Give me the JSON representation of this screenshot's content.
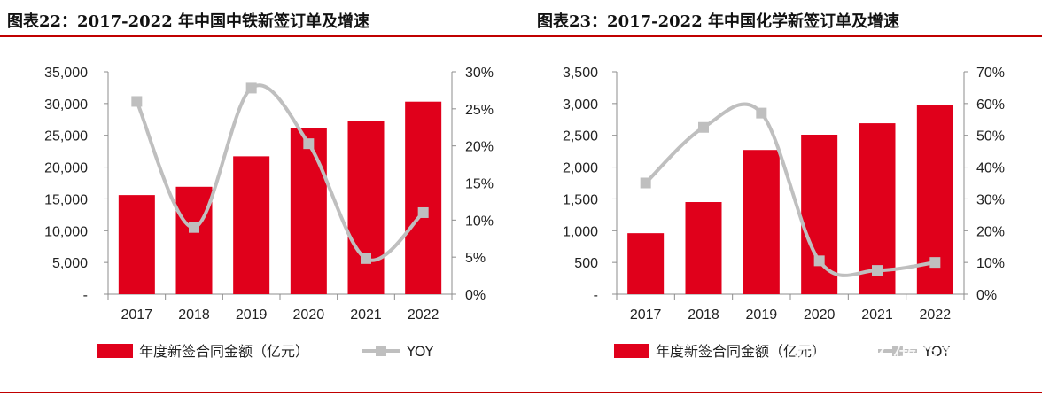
{
  "page": {
    "titles": {
      "left": "图表22：2017-2022 年中国中铁新签订单及增速",
      "right": "图表23：2017-2022 年中国化学新签订单及增速"
    },
    "watermark": "知乎 @不做韭菜"
  },
  "colors": {
    "bar": "#e0001b",
    "line": "#bfbfbf",
    "rule": "#c00000"
  },
  "chart_data": [
    {
      "type": "bar",
      "title": "图表22：2017-2022 年中国中铁新签订单及增速",
      "categories": [
        "2017",
        "2018",
        "2019",
        "2020",
        "2021",
        "2022"
      ],
      "series": [
        {
          "name": "年度新签合同金额（亿元）",
          "type": "bar",
          "axis": "left",
          "values": [
            15600,
            16900,
            21700,
            26100,
            27300,
            30300
          ]
        },
        {
          "name": "YOY",
          "type": "line",
          "axis": "right",
          "values": [
            0.26,
            0.09,
            0.278,
            0.203,
            0.048,
            0.11
          ]
        }
      ],
      "y_left": {
        "min": 0,
        "max": 35000,
        "step": 5000,
        "ticks": [
          "-",
          "5,000",
          "10,000",
          "15,000",
          "20,000",
          "25,000",
          "30,000",
          "35,000"
        ]
      },
      "y_right": {
        "min": 0,
        "max": 0.3,
        "step": 0.05,
        "ticks": [
          "0%",
          "5%",
          "10%",
          "15%",
          "20%",
          "25%",
          "30%"
        ]
      },
      "legend": {
        "bar_label": "年度新签合同金额（亿元）",
        "line_label": "YOY",
        "placement": "bottom"
      },
      "grid": false
    },
    {
      "type": "bar",
      "title": "图表23：2017-2022 年中国化学新签订单及增速",
      "categories": [
        "2017",
        "2018",
        "2019",
        "2020",
        "2021",
        "2022"
      ],
      "series": [
        {
          "name": "年度新签合同金额（亿元）",
          "type": "bar",
          "axis": "left",
          "values": [
            960,
            1450,
            2270,
            2510,
            2690,
            2970
          ]
        },
        {
          "name": "YOY",
          "type": "line",
          "axis": "right",
          "values": [
            0.35,
            0.525,
            0.57,
            0.105,
            0.075,
            0.1
          ]
        }
      ],
      "y_left": {
        "min": 0,
        "max": 3500,
        "step": 500,
        "ticks": [
          "-",
          "500",
          "1,000",
          "1,500",
          "2,000",
          "2,500",
          "3,000",
          "3,500"
        ]
      },
      "y_right": {
        "min": 0,
        "max": 0.7,
        "step": 0.1,
        "ticks": [
          "0%",
          "10%",
          "20%",
          "30%",
          "40%",
          "50%",
          "60%",
          "70%"
        ]
      },
      "legend": {
        "bar_label": "年度新签合同金额（亿元）",
        "line_label": "YOY",
        "placement": "bottom"
      },
      "grid": false
    }
  ]
}
